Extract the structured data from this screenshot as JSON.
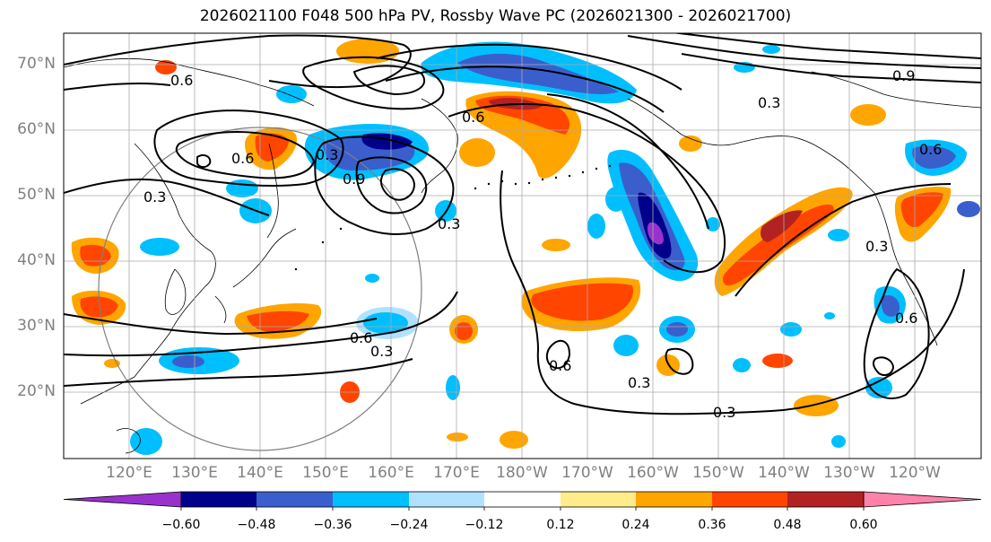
{
  "title": "2026021100 F048 500 hPa PV, Rossby Wave PC (2026021300 - 2026021700)",
  "lat_labels": [
    "70°N",
    "60°N",
    "50°N",
    "40°N",
    "30°N",
    "20°N"
  ],
  "lon_labels": [
    "120°E",
    "130°E",
    "140°E",
    "150°E",
    "160°E",
    "170°E",
    "180°W",
    "170°W",
    "160°W",
    "150°W",
    "140°W",
    "130°W",
    "120°W"
  ],
  "contour_labels": [
    "0.6",
    "0.3",
    "0.6",
    "0.3",
    "0.9",
    "0.6",
    "0.3",
    "0.3",
    "0.6",
    "0.3",
    "0.3",
    "0.6",
    "0.6",
    "0.3",
    "0.9",
    "0.6",
    "0.3"
  ],
  "colorbar": {
    "tick_labels": [
      "−0.60",
      "−0.48",
      "−0.36",
      "−0.24",
      "−0.12",
      "0.12",
      "0.24",
      "0.36",
      "0.48",
      "0.60"
    ],
    "colors": [
      "#9932CC",
      "#00008B",
      "#3A5FCD",
      "#00BFFF",
      "#B0E2FF",
      "#FFFFFF",
      "#FFEC8B",
      "#FFA500",
      "#FF4500",
      "#B22222",
      "#FF82AB"
    ]
  },
  "fill_colors": {
    "neg_strong": "#00008B",
    "neg_mid": "#3A5FCD",
    "neg_light": "#00BFFF",
    "neg_pale": "#B0E2FF",
    "neg_extreme": "#9932CC",
    "pos_pale": "#FFEC8B",
    "pos_light": "#FFA500",
    "pos_mid": "#FF4500",
    "pos_strong": "#B22222"
  }
}
